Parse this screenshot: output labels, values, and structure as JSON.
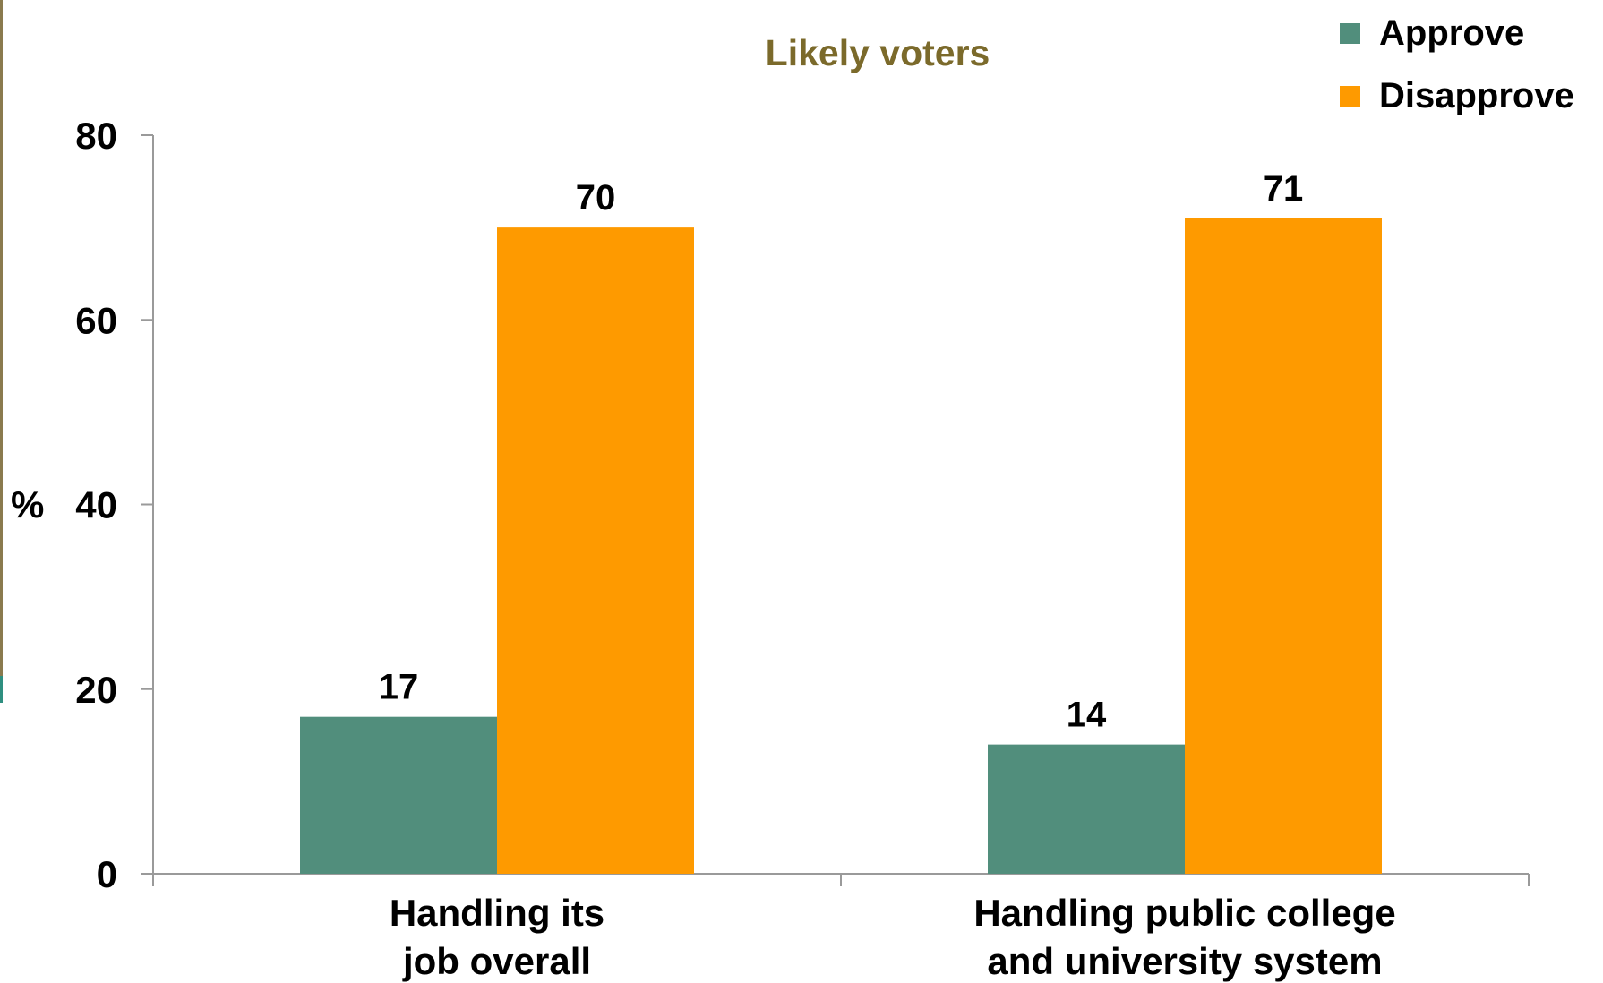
{
  "chart_data": {
    "type": "bar",
    "title": "Likely voters",
    "ylabel": "%",
    "xlabel": "",
    "ylim": [
      0,
      80
    ],
    "yticks": [
      0,
      20,
      40,
      60,
      80
    ],
    "grid": false,
    "legend_position": "top-right",
    "categories": [
      [
        "Handling its",
        "job overall"
      ],
      [
        "Handling public college",
        "and university system"
      ]
    ],
    "series": [
      {
        "name": "Approve",
        "color": "#518e7c",
        "values": [
          17,
          14
        ]
      },
      {
        "name": "Disapprove",
        "color": "#fe9a00",
        "values": [
          70,
          71
        ]
      }
    ]
  },
  "colors": {
    "title": "#7b6a2b",
    "axis": "#9a9a9a",
    "text": "#000000",
    "frame_rule": "#8a7a4e",
    "frame_accent": "#2f8f80"
  }
}
